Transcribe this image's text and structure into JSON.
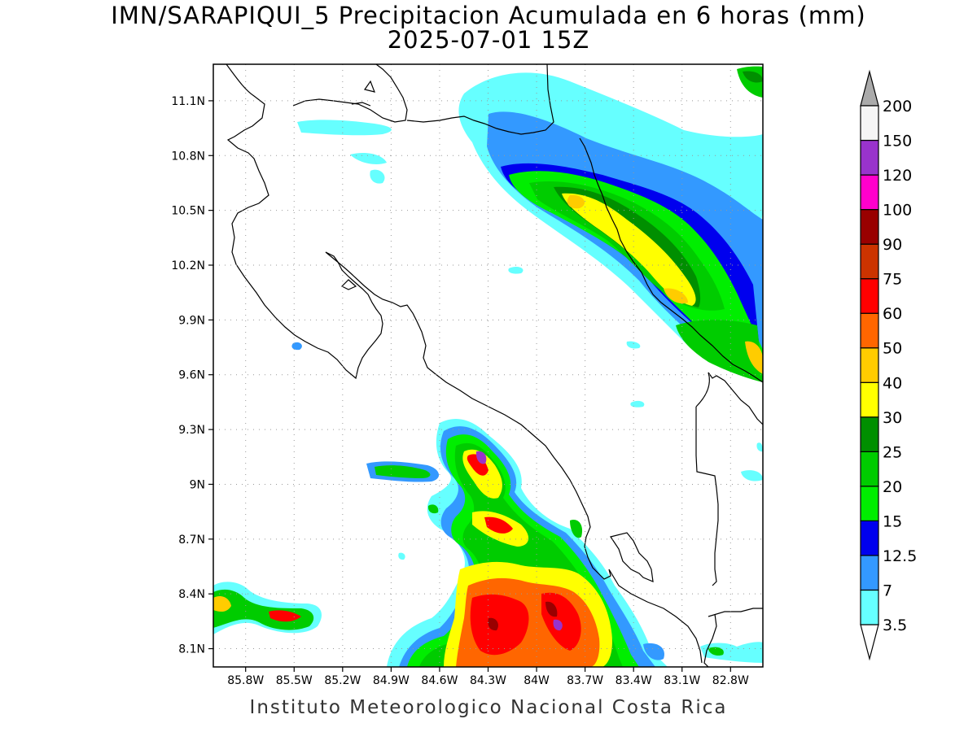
{
  "title": {
    "line1": "IMN/SARAPIQUI_5 Precipitacion Acumulada en 6 horas (mm)",
    "line2": "2025-07-01 15Z"
  },
  "footer": "Instituto Meteorologico Nacional Costa Rica",
  "map": {
    "lon_range": [
      -86.0,
      -82.6
    ],
    "lat_range": [
      8.0,
      11.3
    ],
    "lat_ticks": [
      "11.1N",
      "10.8N",
      "10.5N",
      "10.2N",
      "9.9N",
      "9.6N",
      "9.3N",
      "9N",
      "8.7N",
      "8.4N",
      "8.1N"
    ],
    "lon_ticks": [
      "85.8W",
      "85.5W",
      "85.2W",
      "84.9W",
      "84.6W",
      "84.3W",
      "84W",
      "83.7W",
      "83.4W",
      "83.1W",
      "82.8W"
    ],
    "grid": "dotted"
  },
  "colorbar": {
    "labels": [
      "3.5",
      "7",
      "12.5",
      "15",
      "20",
      "25",
      "30",
      "40",
      "50",
      "60",
      "75",
      "90",
      "100",
      "120",
      "150",
      "200"
    ],
    "colors": [
      "#66ffff",
      "#3399ff",
      "#0000ee",
      "#00ee00",
      "#00cc00",
      "#008f00",
      "#ffff00",
      "#ffcc00",
      "#ff6600",
      "#ff0000",
      "#cc3300",
      "#990000",
      "#ff00cc",
      "#9933cc",
      "#f5f5f5",
      "#aaaaaa"
    ]
  }
}
